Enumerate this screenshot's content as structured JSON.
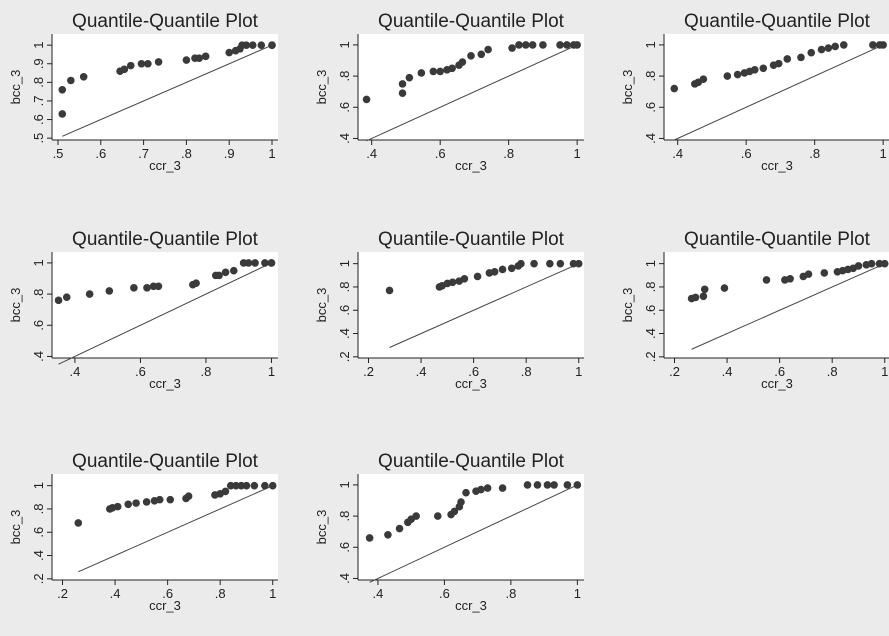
{
  "chart_data": [
    {
      "type": "scatter",
      "title": "Quantile-Quantile Plot",
      "x_label": "ccr_3",
      "y_label": "bcc_3",
      "color": "#3a3a3a",
      "x": [
        0.51,
        0.51,
        0.53,
        0.56,
        0.645,
        0.655,
        0.67,
        0.695,
        0.71,
        0.735,
        0.8,
        0.82,
        0.83,
        0.845,
        0.9,
        0.915,
        0.925,
        0.93,
        0.94,
        0.955,
        0.975,
        1,
        1
      ],
      "values": [
        0.63,
        0.76,
        0.81,
        0.83,
        0.86,
        0.87,
        0.89,
        0.9,
        0.9,
        0.91,
        0.92,
        0.93,
        0.93,
        0.94,
        0.96,
        0.97,
        0.98,
        1,
        1,
        1,
        1,
        1,
        1
      ],
      "xlim": [
        0.486,
        1.014
      ],
      "ylim": [
        0.49,
        1.06
      ],
      "xticks": [
        {
          "value": 0.5,
          "label": ".5"
        },
        {
          "value": 0.6,
          "label": ".6"
        },
        {
          "value": 0.7,
          "label": ".7"
        },
        {
          "value": 0.8,
          "label": ".8"
        },
        {
          "value": 0.9,
          "label": ".9"
        },
        1
      ],
      "yticks": [
        {
          "value": 0.5,
          "label": ".5"
        },
        {
          "value": 0.6,
          "label": ".6"
        },
        {
          "value": 0.7,
          "label": ".7"
        },
        {
          "value": 0.8,
          "label": ".8"
        },
        {
          "value": 0.9,
          "label": ".9"
        },
        1
      ]
    },
    {
      "type": "scatter",
      "title": "Quantile-Quantile Plot",
      "x_label": "ccr_3",
      "y_label": "bcc_3",
      "color": "#3a3a3a",
      "x": [
        0.385,
        0.49,
        0.49,
        0.51,
        0.545,
        0.58,
        0.6,
        0.62,
        0.635,
        0.655,
        0.665,
        0.69,
        0.72,
        0.74,
        0.81,
        0.83,
        0.85,
        0.87,
        0.9,
        0.95,
        0.97,
        0.99,
        1
      ],
      "values": [
        0.65,
        0.69,
        0.75,
        0.79,
        0.82,
        0.83,
        0.83,
        0.84,
        0.85,
        0.87,
        0.89,
        0.93,
        0.94,
        0.97,
        0.98,
        1,
        1,
        1,
        1,
        1,
        1,
        1,
        1
      ],
      "xlim": [
        0.36,
        1.02
      ],
      "ylim": [
        0.39,
        1.07
      ],
      "xticks": [
        {
          "value": 0.4,
          "label": ".4"
        },
        {
          "value": 0.6,
          "label": ".6"
        },
        {
          "value": 0.8,
          "label": ".8"
        },
        1
      ],
      "yticks": [
        {
          "value": 0.4,
          "label": ".4"
        },
        {
          "value": 0.6,
          "label": ".6"
        },
        {
          "value": 0.8,
          "label": ".8"
        },
        1
      ]
    },
    {
      "type": "scatter",
      "title": "Quantile-Quantile Plot",
      "x_label": "ccr_3",
      "y_label": "bcc_3",
      "color": "#3a3a3a",
      "x": [
        0.39,
        0.45,
        0.46,
        0.475,
        0.545,
        0.575,
        0.595,
        0.61,
        0.625,
        0.65,
        0.68,
        0.695,
        0.72,
        0.76,
        0.79,
        0.82,
        0.84,
        0.86,
        0.885,
        0.97,
        0.99,
        1
      ],
      "values": [
        0.72,
        0.75,
        0.76,
        0.78,
        0.8,
        0.81,
        0.82,
        0.83,
        0.84,
        0.85,
        0.87,
        0.88,
        0.91,
        0.92,
        0.95,
        0.97,
        0.98,
        0.99,
        1,
        1,
        1,
        1
      ],
      "xlim": [
        0.36,
        1.02
      ],
      "ylim": [
        0.39,
        1.07
      ],
      "xticks": [
        {
          "value": 0.4,
          "label": ".4"
        },
        {
          "value": 0.6,
          "label": ".6"
        },
        {
          "value": 0.8,
          "label": ".8"
        },
        1
      ],
      "yticks": [
        {
          "value": 0.4,
          "label": ".4"
        },
        {
          "value": 0.6,
          "label": ".6"
        },
        {
          "value": 0.8,
          "label": ".8"
        },
        1
      ]
    },
    {
      "type": "scatter",
      "title": "Quantile-Quantile Plot",
      "x_label": "ccr_3",
      "y_label": "bcc_3",
      "color": "#3a3a3a",
      "x": [
        0.35,
        0.375,
        0.445,
        0.505,
        0.58,
        0.62,
        0.64,
        0.655,
        0.76,
        0.77,
        0.83,
        0.84,
        0.86,
        0.885,
        0.915,
        0.93,
        0.95,
        0.98,
        1,
        1
      ],
      "values": [
        0.76,
        0.78,
        0.8,
        0.82,
        0.84,
        0.84,
        0.85,
        0.85,
        0.86,
        0.87,
        0.92,
        0.92,
        0.94,
        0.95,
        1,
        1,
        1,
        1,
        1,
        1
      ],
      "xlim": [
        0.33,
        1.02
      ],
      "ylim": [
        0.39,
        1.07
      ],
      "xticks": [
        {
          "value": 0.4,
          "label": ".4"
        },
        {
          "value": 0.6,
          "label": ".6"
        },
        {
          "value": 0.8,
          "label": ".8"
        },
        1
      ],
      "yticks": [
        {
          "value": 0.4,
          "label": ".4"
        },
        {
          "value": 0.6,
          "label": ".6"
        },
        {
          "value": 0.8,
          "label": ".8"
        },
        1
      ]
    },
    {
      "type": "scatter",
      "title": "Quantile-Quantile Plot",
      "x_label": "ccr_3",
      "y_label": "bcc_3",
      "color": "#3a3a3a",
      "x": [
        0.28,
        0.47,
        0.48,
        0.5,
        0.52,
        0.545,
        0.565,
        0.615,
        0.66,
        0.68,
        0.71,
        0.745,
        0.77,
        0.78,
        0.83,
        0.89,
        0.93,
        0.98,
        1
      ],
      "values": [
        0.77,
        0.8,
        0.81,
        0.83,
        0.84,
        0.85,
        0.87,
        0.89,
        0.92,
        0.93,
        0.95,
        0.96,
        0.98,
        1,
        1,
        1,
        1,
        1,
        1
      ],
      "xlim": [
        0.16,
        1.02
      ],
      "ylim": [
        0.19,
        1.1
      ],
      "xticks": [
        {
          "value": 0.2,
          "label": ".2"
        },
        {
          "value": 0.4,
          "label": ".4"
        },
        {
          "value": 0.6,
          "label": ".6"
        },
        {
          "value": 0.8,
          "label": ".8"
        },
        1
      ],
      "yticks": [
        {
          "value": 0.2,
          "label": ".2"
        },
        {
          "value": 0.4,
          "label": ".4"
        },
        {
          "value": 0.6,
          "label": ".6"
        },
        {
          "value": 0.8,
          "label": ".8"
        },
        1
      ]
    },
    {
      "type": "scatter",
      "title": "Quantile-Quantile Plot",
      "x_label": "ccr_3",
      "y_label": "bcc_3",
      "color": "#3a3a3a",
      "x": [
        0.265,
        0.28,
        0.31,
        0.315,
        0.39,
        0.55,
        0.62,
        0.64,
        0.69,
        0.71,
        0.77,
        0.82,
        0.84,
        0.86,
        0.88,
        0.9,
        0.93,
        0.95,
        0.98,
        1
      ],
      "values": [
        0.7,
        0.71,
        0.72,
        0.78,
        0.79,
        0.86,
        0.86,
        0.87,
        0.89,
        0.91,
        0.92,
        0.93,
        0.94,
        0.95,
        0.96,
        0.98,
        0.99,
        1,
        1,
        1
      ],
      "xlim": [
        0.16,
        1.02
      ],
      "ylim": [
        0.19,
        1.1
      ],
      "xticks": [
        {
          "value": 0.2,
          "label": ".2"
        },
        {
          "value": 0.4,
          "label": ".4"
        },
        {
          "value": 0.6,
          "label": ".6"
        },
        {
          "value": 0.8,
          "label": ".8"
        },
        1
      ],
      "yticks": [
        {
          "value": 0.2,
          "label": ".2"
        },
        {
          "value": 0.4,
          "label": ".4"
        },
        {
          "value": 0.6,
          "label": ".6"
        },
        {
          "value": 0.8,
          "label": ".8"
        },
        1
      ]
    },
    {
      "type": "scatter",
      "title": "Quantile-Quantile Plot",
      "x_label": "ccr_3",
      "y_label": "bcc_3",
      "color": "#3a3a3a",
      "x": [
        0.26,
        0.38,
        0.39,
        0.41,
        0.45,
        0.48,
        0.52,
        0.55,
        0.57,
        0.61,
        0.67,
        0.68,
        0.78,
        0.8,
        0.82,
        0.84,
        0.86,
        0.88,
        0.9,
        0.93,
        0.97,
        1
      ],
      "values": [
        0.68,
        0.8,
        0.81,
        0.82,
        0.84,
        0.85,
        0.86,
        0.87,
        0.88,
        0.88,
        0.89,
        0.91,
        0.92,
        0.93,
        0.95,
        1,
        1,
        1,
        1,
        1,
        1,
        1
      ],
      "xlim": [
        0.16,
        1.02
      ],
      "ylim": [
        0.19,
        1.1
      ],
      "xticks": [
        {
          "value": 0.2,
          "label": ".2"
        },
        {
          "value": 0.4,
          "label": ".4"
        },
        {
          "value": 0.6,
          "label": ".6"
        },
        {
          "value": 0.8,
          "label": ".8"
        },
        1
      ],
      "yticks": [
        {
          "value": 0.2,
          "label": ".2"
        },
        {
          "value": 0.4,
          "label": ".4"
        },
        {
          "value": 0.6,
          "label": ".6"
        },
        {
          "value": 0.8,
          "label": ".8"
        },
        1
      ]
    },
    {
      "type": "scatter",
      "title": "Quantile-Quantile Plot",
      "x_label": "ccr_3",
      "y_label": "bcc_3",
      "color": "#3a3a3a",
      "x": [
        0.375,
        0.43,
        0.465,
        0.49,
        0.5,
        0.515,
        0.58,
        0.62,
        0.63,
        0.645,
        0.65,
        0.665,
        0.695,
        0.71,
        0.73,
        0.775,
        0.85,
        0.88,
        0.91,
        0.93,
        0.97,
        1
      ],
      "values": [
        0.66,
        0.68,
        0.72,
        0.76,
        0.78,
        0.8,
        0.8,
        0.81,
        0.83,
        0.86,
        0.89,
        0.95,
        0.96,
        0.97,
        0.98,
        0.98,
        1,
        1,
        1,
        1,
        1,
        1
      ],
      "xlim": [
        0.34,
        1.02
      ],
      "ylim": [
        0.39,
        1.07
      ],
      "xticks": [
        {
          "value": 0.4,
          "label": ".4"
        },
        {
          "value": 0.6,
          "label": ".6"
        },
        {
          "value": 0.8,
          "label": ".8"
        },
        1
      ],
      "yticks": [
        {
          "value": 0.4,
          "label": ".4"
        },
        {
          "value": 0.6,
          "label": ".6"
        },
        {
          "value": 0.8,
          "label": ".8"
        },
        1
      ]
    }
  ]
}
